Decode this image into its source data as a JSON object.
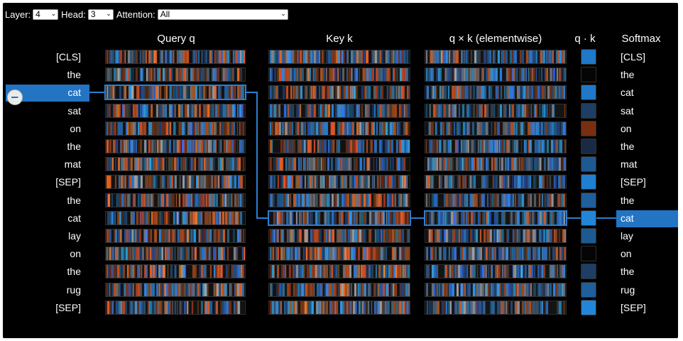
{
  "controls": {
    "layer_label": "Layer:",
    "layer_value": "4",
    "head_label": "Head:",
    "head_value": "3",
    "attention_label": "Attention:",
    "attention_value": "All"
  },
  "headers": {
    "query": "Query q",
    "key": "Key k",
    "product": "q × k (elementwise)",
    "dot": "q · k",
    "softmax": "Softmax"
  },
  "tokens": [
    "[CLS]",
    "the",
    "cat",
    "sat",
    "on",
    "the",
    "mat",
    "[SEP]",
    "the",
    "cat",
    "lay",
    "on",
    "the",
    "rug",
    "[SEP]"
  ],
  "selected_query_index": 2,
  "selected_key_index": 9,
  "dot_colors": [
    "#1f78c8",
    "#050505",
    "#1f78c8",
    "#1e3e63",
    "#7a2e10",
    "#1b2a44",
    "#1e5a92",
    "#1f7fd0",
    "#1f5f9c",
    "#2385d8",
    "#1e5a92",
    "#050505",
    "#1e3e63",
    "#1f5f9c",
    "#2385d8"
  ],
  "colors": {
    "accent": "#2374c3",
    "positive": "#2e86de",
    "negative": "#e8642a",
    "background": "#000000"
  },
  "icons": {
    "cursor_button": "minus-circle-icon",
    "cursor": "hand-pointer-icon"
  }
}
